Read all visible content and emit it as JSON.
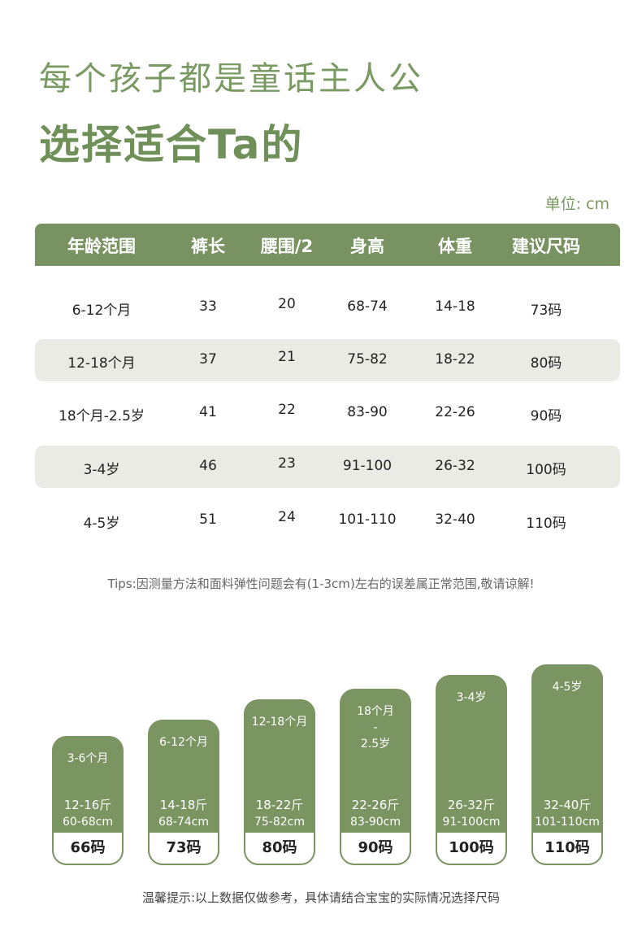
{
  "header": {
    "line1": "每个孩子都是童话主人公",
    "line2": "选择适合Ta的"
  },
  "unit": "单位: cm",
  "table": {
    "columns": [
      "年龄范围",
      "裤长",
      "腰围/2",
      "身高",
      "体重",
      "建议尺码"
    ],
    "rows": [
      [
        "6-12个月",
        "33",
        "20",
        "68-74",
        "14-18",
        "73码"
      ],
      [
        "12-18个月",
        "37",
        "21",
        "75-82",
        "18-22",
        "80码"
      ],
      [
        "18个月-2.5岁",
        "41",
        "22",
        "83-90",
        "22-26",
        "90码"
      ],
      [
        "3-4岁",
        "46",
        "23",
        "91-100",
        "26-32",
        "100码"
      ],
      [
        "4-5岁",
        "51",
        "24",
        "101-110",
        "32-40",
        "110码"
      ]
    ]
  },
  "tips": "Tips:因测量方法和面料弹性问题会有(1-3cm)左右的误差属正常范围,敬请谅解!",
  "cards": [
    {
      "age": [
        "3-6个月"
      ],
      "weight": "12-16斤",
      "height": "60-68cm",
      "size": "66码"
    },
    {
      "age": [
        "6-12个月"
      ],
      "weight": "14-18斤",
      "height": "68-74cm",
      "size": "73码"
    },
    {
      "age": [
        "12-18个月"
      ],
      "weight": "18-22斤",
      "height": "75-82cm",
      "size": "80码"
    },
    {
      "age": [
        "18个月",
        "-",
        "2.5岁"
      ],
      "weight": "22-26斤",
      "height": "83-90cm",
      "size": "90码"
    },
    {
      "age": [
        "3-4岁"
      ],
      "weight": "26-32斤",
      "height": "91-100cm",
      "size": "100码"
    },
    {
      "age": [
        "4-5岁"
      ],
      "weight": "32-40斤",
      "height": "101-110cm",
      "size": "110码"
    }
  ],
  "note": "温馨提示:以上数据仅做参考，具体请结合宝宝的实际情况选择尺码"
}
